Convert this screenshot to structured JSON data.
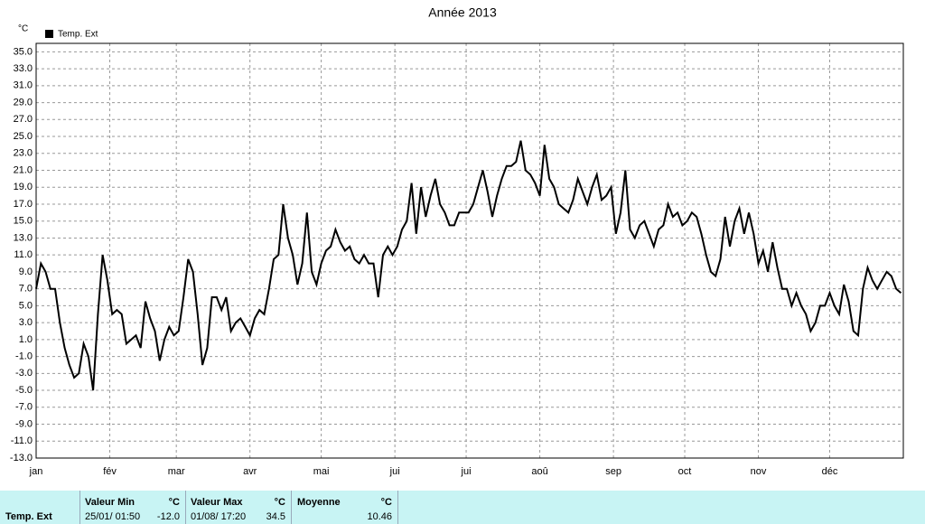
{
  "chart_data": {
    "type": "line",
    "title": "Année 2013",
    "y_label": "°C",
    "legend_position": "top-left",
    "grid": true,
    "x": [
      1,
      3,
      5,
      7,
      9,
      11,
      13,
      15,
      17,
      19,
      21,
      23,
      25,
      27,
      29,
      31,
      33,
      35,
      37,
      39,
      41,
      43,
      45,
      47,
      49,
      51,
      53,
      55,
      57,
      59,
      61,
      63,
      65,
      67,
      69,
      71,
      73,
      75,
      77,
      79,
      81,
      83,
      85,
      87,
      89,
      91,
      93,
      95,
      97,
      99,
      101,
      103,
      105,
      107,
      109,
      111,
      113,
      115,
      117,
      119,
      121,
      123,
      125,
      127,
      129,
      131,
      133,
      135,
      137,
      139,
      141,
      143,
      145,
      147,
      149,
      151,
      153,
      155,
      157,
      159,
      161,
      163,
      165,
      167,
      169,
      171,
      173,
      175,
      177,
      179,
      181,
      183,
      185,
      187,
      189,
      191,
      193,
      195,
      197,
      199,
      201,
      203,
      205,
      207,
      209,
      211,
      213,
      215,
      217,
      219,
      221,
      223,
      225,
      227,
      229,
      231,
      233,
      235,
      237,
      239,
      241,
      243,
      245,
      247,
      249,
      251,
      253,
      255,
      257,
      259,
      261,
      263,
      265,
      267,
      269,
      271,
      273,
      275,
      277,
      279,
      281,
      283,
      285,
      287,
      289,
      291,
      293,
      295,
      297,
      299,
      301,
      303,
      305,
      307,
      309,
      311,
      313,
      315,
      317,
      319,
      321,
      323,
      325,
      327,
      329,
      331,
      333,
      335,
      337,
      339,
      341,
      343,
      345,
      347,
      349,
      351,
      353,
      355,
      357,
      359,
      361,
      363,
      365
    ],
    "series": [
      {
        "name": "Temp. Ext",
        "color": "#000000",
        "values": [
          7,
          10,
          9,
          7,
          7,
          3,
          0,
          -2,
          -3.5,
          -3,
          0.5,
          -1,
          -5,
          4,
          11,
          8,
          4,
          4.5,
          4,
          0.5,
          1,
          1.5,
          0,
          5.5,
          3.5,
          2,
          -1.5,
          1,
          2.5,
          1.5,
          2,
          6,
          10.5,
          9,
          4,
          -2,
          0,
          6,
          6,
          4.5,
          6,
          2,
          3,
          3.5,
          2.5,
          1.5,
          3.5,
          4.5,
          4,
          7,
          10.5,
          11,
          17,
          13,
          11,
          7.5,
          10,
          16,
          9,
          7.5,
          10,
          11.5,
          12,
          14,
          12.5,
          11.5,
          12,
          10.5,
          10,
          11,
          10,
          10,
          6,
          11,
          12,
          11,
          12,
          14,
          15,
          19.5,
          13.5,
          19,
          15.5,
          18,
          20,
          17,
          16,
          14.5,
          14.5,
          16,
          16,
          16,
          17,
          19,
          21,
          18.5,
          15.5,
          18,
          20,
          21.5,
          21.5,
          22,
          24.5,
          21,
          20.5,
          19.5,
          18,
          24,
          20,
          19,
          17,
          16.5,
          16,
          17.5,
          20,
          18.5,
          17,
          19,
          20.5,
          17.5,
          18,
          19,
          13.5,
          16,
          21,
          14,
          13,
          14.5,
          15,
          13.5,
          12,
          14,
          14.5,
          17,
          15.5,
          16,
          14.5,
          15,
          16,
          15.5,
          13.5,
          11,
          9,
          8.5,
          10.5,
          15.5,
          12,
          15,
          16.5,
          13.5,
          16,
          13.5,
          10,
          11.5,
          9,
          12.5,
          9.5,
          7,
          7,
          5,
          6.5,
          5,
          4,
          2,
          3,
          5,
          5,
          6.5,
          5,
          4,
          7.5,
          5.5,
          2,
          1.5,
          7,
          9.5,
          8,
          7,
          8,
          9,
          8.5,
          7,
          6.5
        ]
      }
    ],
    "xlim": [
      1,
      366
    ],
    "xticks": [
      {
        "value": 1,
        "label": "jan"
      },
      {
        "value": 32,
        "label": "fév"
      },
      {
        "value": 60,
        "label": "mar"
      },
      {
        "value": 91,
        "label": "avr"
      },
      {
        "value": 121,
        "label": "mai"
      },
      {
        "value": 152,
        "label": "jui"
      },
      {
        "value": 182,
        "label": "jui"
      },
      {
        "value": 213,
        "label": "aoû"
      },
      {
        "value": 244,
        "label": "sep"
      },
      {
        "value": 274,
        "label": "oct"
      },
      {
        "value": 305,
        "label": "nov"
      },
      {
        "value": 335,
        "label": "déc"
      }
    ],
    "ylim": [
      -13,
      36
    ],
    "yticks": [
      {
        "value": -13,
        "label": "-13.0"
      },
      {
        "value": -11,
        "label": "-11.0"
      },
      {
        "value": -9,
        "label": "-9.0"
      },
      {
        "value": -7,
        "label": "-7.0"
      },
      {
        "value": -5,
        "label": "-5.0"
      },
      {
        "value": -3,
        "label": "-3.0"
      },
      {
        "value": -1,
        "label": "-1.0"
      },
      {
        "value": 1,
        "label": "1.0"
      },
      {
        "value": 3,
        "label": "3.0"
      },
      {
        "value": 5,
        "label": "5.0"
      },
      {
        "value": 7,
        "label": "7.0"
      },
      {
        "value": 9,
        "label": "9.0"
      },
      {
        "value": 11,
        "label": "11.0"
      },
      {
        "value": 13,
        "label": "13.0"
      },
      {
        "value": 15,
        "label": "15.0"
      },
      {
        "value": 17,
        "label": "17.0"
      },
      {
        "value": 19,
        "label": "19.0"
      },
      {
        "value": 21,
        "label": "21.0"
      },
      {
        "value": 23,
        "label": "23.0"
      },
      {
        "value": 25,
        "label": "25.0"
      },
      {
        "value": 27,
        "label": "27.0"
      },
      {
        "value": 29,
        "label": "29.0"
      },
      {
        "value": 31,
        "label": "31.0"
      },
      {
        "value": 33,
        "label": "33.0"
      },
      {
        "value": 35,
        "label": "35.0"
      }
    ]
  },
  "summary_table": {
    "row_label": "Temp. Ext",
    "columns": [
      {
        "header": "Valeur Min",
        "unit": "°C",
        "date": "25/01/ 01:50",
        "value": "-12.0"
      },
      {
        "header": "Valeur Max",
        "unit": "°C",
        "date": "01/08/ 17:20",
        "value": "34.5"
      },
      {
        "header": "Moyenne",
        "unit": "°C",
        "value": "10.46"
      }
    ]
  }
}
